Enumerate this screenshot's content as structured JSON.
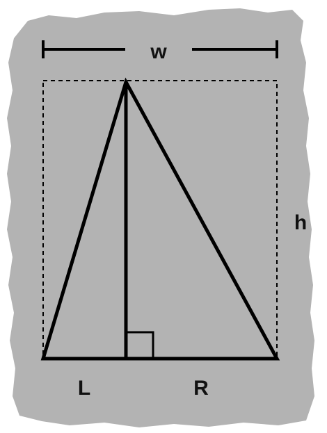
{
  "labels": {
    "width": "w",
    "height": "h",
    "left_segment": "L",
    "right_segment": "R"
  },
  "colors": {
    "background_shape": "#b3b3b3",
    "stroke": "#000000",
    "label": "#111111"
  }
}
